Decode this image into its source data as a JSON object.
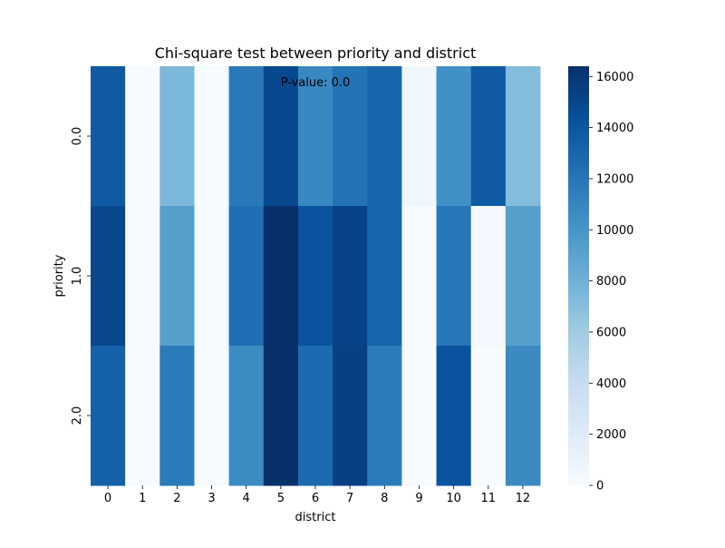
{
  "chart_data": {
    "type": "heatmap",
    "title": "Chi-square test between priority and district",
    "xlabel": "district",
    "ylabel": "priority",
    "x_categories": [
      "0",
      "1",
      "2",
      "3",
      "4",
      "5",
      "6",
      "7",
      "8",
      "9",
      "10",
      "11",
      "12"
    ],
    "y_categories": [
      "0.0",
      "1.0",
      "2.0"
    ],
    "values": [
      [
        13800,
        0,
        7500,
        50,
        11800,
        14900,
        10900,
        12200,
        13000,
        650,
        10300,
        13800,
        7200
      ],
      [
        15000,
        0,
        9300,
        30,
        12500,
        16400,
        14200,
        15200,
        13100,
        0,
        11900,
        350,
        9300
      ],
      [
        13300,
        0,
        11700,
        40,
        10600,
        16400,
        12700,
        15400,
        11700,
        0,
        14200,
        20,
        10700
      ]
    ],
    "annotation": "P-value: 0.0",
    "colormap": "Blues",
    "vmin": 0,
    "vmax": 16400,
    "colorbar_ticks": [
      0,
      2000,
      4000,
      6000,
      8000,
      10000,
      12000,
      14000,
      16000
    ],
    "colorbar_tick_labels": [
      "0",
      "2000",
      "4000",
      "6000",
      "8000",
      "10000",
      "12000",
      "14000",
      "16000"
    ],
    "grid": false
  }
}
